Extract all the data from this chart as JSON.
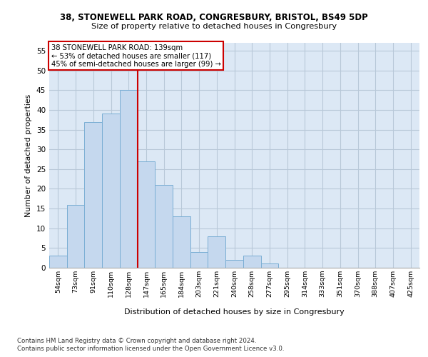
{
  "title1": "38, STONEWELL PARK ROAD, CONGRESBURY, BRISTOL, BS49 5DP",
  "title2": "Size of property relative to detached houses in Congresbury",
  "xlabel": "Distribution of detached houses by size in Congresbury",
  "ylabel": "Number of detached properties",
  "bar_values": [
    3,
    16,
    37,
    39,
    45,
    27,
    21,
    13,
    4,
    8,
    2,
    3,
    1,
    0,
    0,
    0,
    0,
    0,
    0,
    0,
    0
  ],
  "bin_labels": [
    "54sqm",
    "73sqm",
    "91sqm",
    "110sqm",
    "128sqm",
    "147sqm",
    "165sqm",
    "184sqm",
    "203sqm",
    "221sqm",
    "240sqm",
    "258sqm",
    "277sqm",
    "295sqm",
    "314sqm",
    "333sqm",
    "351sqm",
    "370sqm",
    "388sqm",
    "407sqm",
    "425sqm"
  ],
  "bar_color": "#c5d8ee",
  "bar_edge_color": "#7aaed4",
  "grid_color": "#b8c8d8",
  "background_color": "#dce8f5",
  "vline_bin_index": 4,
  "annotation_text": "38 STONEWELL PARK ROAD: 139sqm\n← 53% of detached houses are smaller (117)\n45% of semi-detached houses are larger (99) →",
  "annotation_box_color": "#ffffff",
  "annotation_edge_color": "#cc0000",
  "vline_color": "#cc0000",
  "footer1": "Contains HM Land Registry data © Crown copyright and database right 2024.",
  "footer2": "Contains public sector information licensed under the Open Government Licence v3.0.",
  "ylim": [
    0,
    57
  ],
  "yticks": [
    0,
    5,
    10,
    15,
    20,
    25,
    30,
    35,
    40,
    45,
    50,
    55
  ]
}
